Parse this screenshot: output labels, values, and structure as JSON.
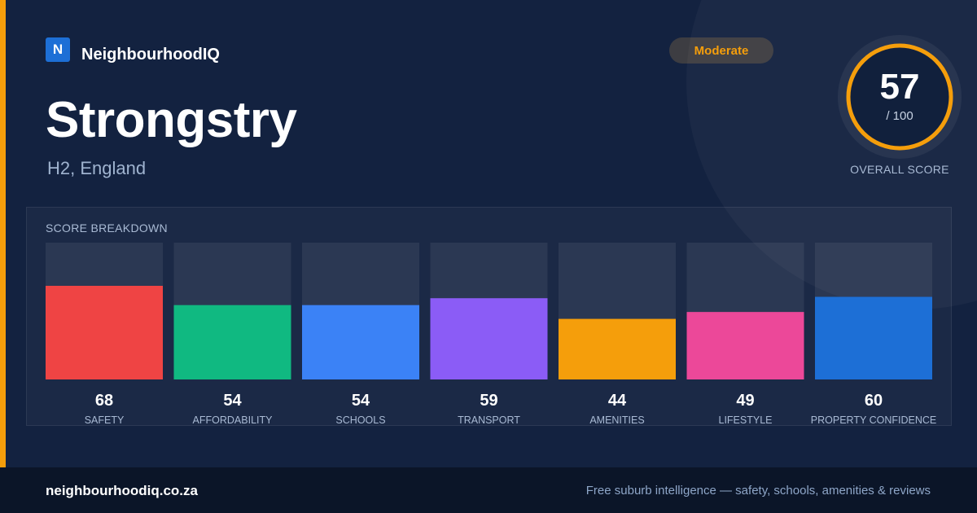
{
  "brand": {
    "logo_letter": "N",
    "name": "NeighbourhoodIQ",
    "logo_color": "#1d6fd6"
  },
  "accent_color": "#f59e0b",
  "place": {
    "name": "Strongstry",
    "region": "H2, England"
  },
  "rating": {
    "label": "Moderate",
    "color": "#f59e0b"
  },
  "overall": {
    "score": "57",
    "max": "/ 100",
    "label": "OVERALL SCORE",
    "value": 57,
    "ring_color": "#f59e0b"
  },
  "breakdown": {
    "title": "SCORE BREAKDOWN"
  },
  "chart_data": {
    "type": "bar",
    "title": "SCORE BREAKDOWN",
    "categories": [
      "SAFETY",
      "AFFORDABILITY",
      "SCHOOLS",
      "TRANSPORT",
      "AMENITIES",
      "LIFESTYLE",
      "PROPERTY CONFIDENCE"
    ],
    "values": [
      68,
      54,
      54,
      59,
      44,
      49,
      60
    ],
    "colors": [
      "#ef4444",
      "#10b981",
      "#3b82f6",
      "#8b5cf6",
      "#f59e0b",
      "#ec4899",
      "#1d6fd6"
    ],
    "ylim": [
      0,
      100
    ],
    "xlabel": "",
    "ylabel": "",
    "grid": false,
    "legend": "none"
  },
  "footer": {
    "url": "neighbourhoodiq.co.za",
    "tagline": "Free suburb intelligence — safety, schools, amenities & reviews"
  }
}
